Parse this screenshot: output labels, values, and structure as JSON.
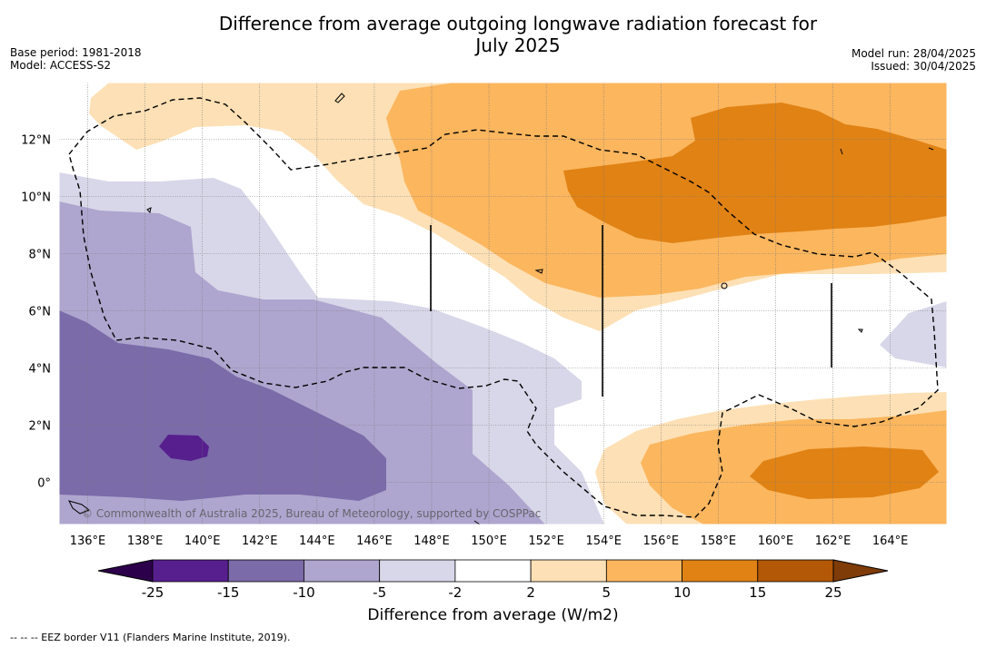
{
  "title_line1": "Difference from average outgoing longwave radiation forecast for",
  "title_line2": "July 2025",
  "meta_left": [
    "Base period: 1981-2018",
    "Model: ACCESS-S2"
  ],
  "meta_right": [
    "Model run: 28/04/2025",
    "Issued: 30/04/2025"
  ],
  "lat_labels": [
    "12°N",
    "10°N",
    "8°N",
    "6°N",
    "4°N",
    "2°N",
    "0°"
  ],
  "lon_labels": [
    "136°E",
    "138°E",
    "140°E",
    "142°E",
    "144°E",
    "146°E",
    "148°E",
    "150°E",
    "152°E",
    "154°E",
    "156°E",
    "158°E",
    "160°E",
    "162°E",
    "164°E"
  ],
  "copyright": "© Commonwealth of Australia 2025, Bureau of Meteorology, supported by COSPPac",
  "colorbar": {
    "ticks": [
      "-25",
      "-15",
      "-10",
      "-5",
      "-2",
      "2",
      "5",
      "10",
      "15",
      "25"
    ],
    "colors": [
      "#561f8d",
      "#7b6ba9",
      "#afa6cf",
      "#d8d7e9",
      "#ffffff",
      "#fde0b5",
      "#fbb65e",
      "#e08214",
      "#b35806"
    ],
    "extend_low": "#2d004b",
    "extend_high": "#7f3b08",
    "label": "Difference from average (W/m2)"
  },
  "footer": "--  --  -- EEZ border V11 (Flanders Marine Institute, 2019)."
}
